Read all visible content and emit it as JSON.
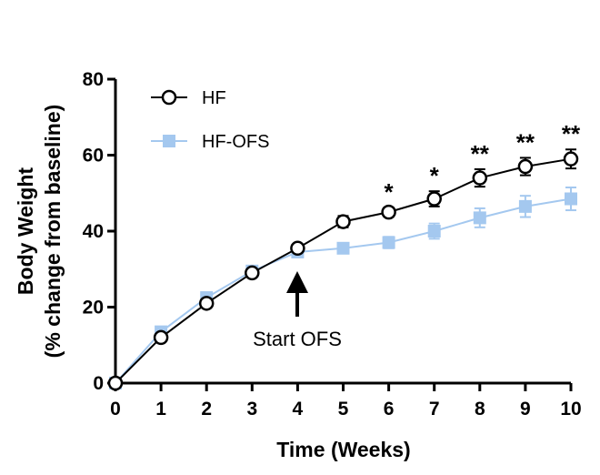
{
  "chart_data": {
    "type": "line",
    "xlabel": "Time (Weeks)",
    "ylabel_line1": "Body Weight",
    "ylabel_line2": "(% change from baseline)",
    "x": [
      0,
      1,
      2,
      3,
      4,
      5,
      6,
      7,
      8,
      9,
      10
    ],
    "xlim": [
      0,
      10
    ],
    "ylim": [
      0,
      80
    ],
    "xticks": [
      "0",
      "1",
      "2",
      "3",
      "4",
      "5",
      "6",
      "7",
      "8",
      "9",
      "10"
    ],
    "yticks": [
      "0",
      "20",
      "40",
      "60",
      "80"
    ],
    "legend_position": "top-left",
    "series": [
      {
        "name": "HF",
        "marker": "open-circle",
        "color": "#000000",
        "values": [
          0,
          12,
          21,
          29,
          35.5,
          42.5,
          45,
          48.5,
          54,
          57,
          59
        ],
        "errors": [
          0,
          0.8,
          0.8,
          0.8,
          1,
          1.5,
          1.2,
          2,
          2.3,
          2.3,
          2.5
        ]
      },
      {
        "name": "HF-OFS",
        "marker": "filled-square",
        "color": "#a4c8ef",
        "values": [
          0,
          13.5,
          22.5,
          29.5,
          34.5,
          35.5,
          37,
          40,
          43.5,
          46.5,
          48.5
        ],
        "errors": [
          0,
          0.8,
          0.8,
          0.8,
          1,
          1.3,
          1.5,
          2,
          2.5,
          2.8,
          3
        ]
      }
    ],
    "significance": [
      {
        "x": 6,
        "label": "*"
      },
      {
        "x": 7,
        "label": "*"
      },
      {
        "x": 8,
        "label": "**"
      },
      {
        "x": 9,
        "label": "**"
      },
      {
        "x": 10,
        "label": "**"
      }
    ],
    "annotation": {
      "text": "Start OFS",
      "x": 4
    }
  }
}
